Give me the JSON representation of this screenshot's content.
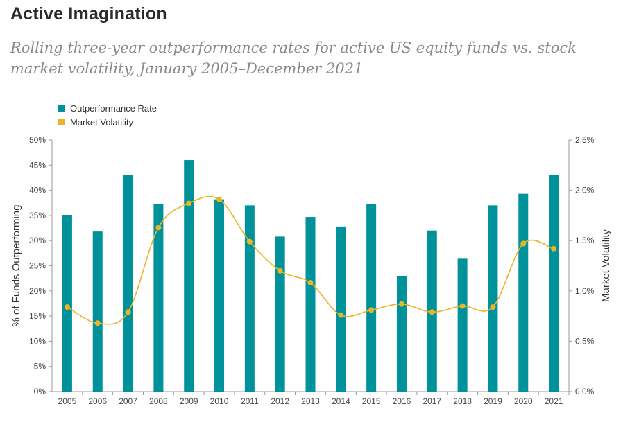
{
  "header": {
    "title": "Active Imagination",
    "subtitle": "Rolling three-year outperformance rates for active US equity funds vs. stock market volatility, January 2005–December 2021"
  },
  "colors": {
    "bar": "#00929a",
    "line": "#e9b526"
  },
  "chart_data": {
    "type": "bar",
    "categories": [
      "2005",
      "2006",
      "2007",
      "2008",
      "2009",
      "2010",
      "2011",
      "2012",
      "2013",
      "2014",
      "2015",
      "2016",
      "2017",
      "2018",
      "2019",
      "2020",
      "2021"
    ],
    "series": [
      {
        "name": "Outperformance Rate",
        "type": "bar",
        "axis": "left",
        "values": [
          35,
          31.8,
          43,
          37.2,
          46,
          38.2,
          37,
          30.8,
          34.7,
          32.8,
          37.2,
          23,
          32,
          26.4,
          37,
          39.3,
          43.1
        ]
      },
      {
        "name": "Market Volatility",
        "type": "line",
        "axis": "right",
        "values": [
          0.84,
          0.68,
          0.79,
          1.63,
          1.87,
          1.91,
          1.49,
          1.2,
          1.08,
          0.76,
          0.81,
          0.87,
          0.79,
          0.85,
          0.84,
          1.47,
          1.42
        ]
      }
    ],
    "ylabel": "% of Funds Outperforming",
    "y2label": "Market Volatility",
    "ylim": [
      0,
      50
    ],
    "y2lim": [
      0,
      2.5
    ],
    "yticks": [
      "0%",
      "5%",
      "10%",
      "15%",
      "20%",
      "25%",
      "30%",
      "35%",
      "40%",
      "45%",
      "50%"
    ],
    "y2ticks": [
      "0.0%",
      "0.5%",
      "1.0%",
      "1.5%",
      "2.0%",
      "2.5%"
    ],
    "grid": false,
    "legend_position": "top-left"
  }
}
